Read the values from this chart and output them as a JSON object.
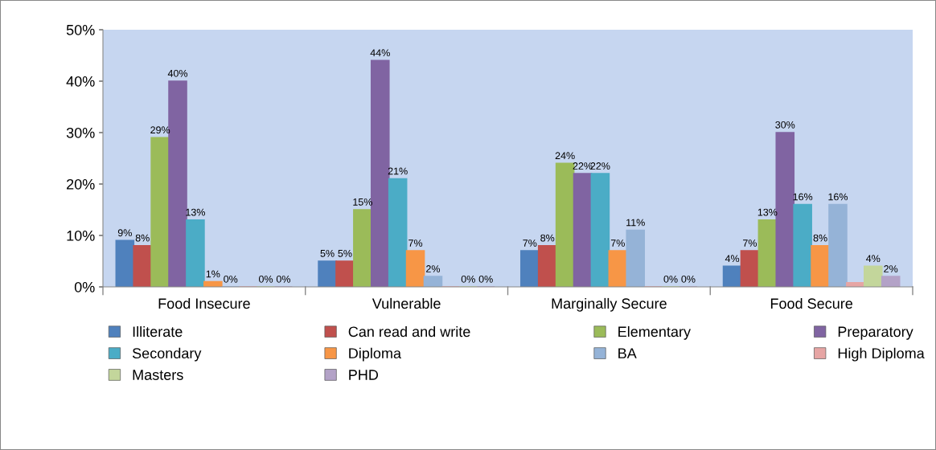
{
  "chart_data": {
    "type": "bar",
    "categories": [
      "Food Insecure",
      "Vulnerable",
      "Marginally Secure",
      "Food Secure"
    ],
    "ylim": [
      0,
      50
    ],
    "yticks": [
      {
        "value": 0,
        "label": "0%"
      },
      {
        "value": 10,
        "label": "10%"
      },
      {
        "value": 20,
        "label": "20%"
      },
      {
        "value": 30,
        "label": "30%"
      },
      {
        "value": 40,
        "label": "40%"
      },
      {
        "value": 50,
        "label": "50%"
      }
    ],
    "grid": false,
    "legend": "bottom",
    "series": [
      {
        "name": "Illiterate",
        "color": "#4f81bd",
        "values": [
          9,
          5,
          7,
          4
        ],
        "value_labels": [
          "9%",
          "5%",
          "7%",
          "4%"
        ]
      },
      {
        "name": "Can read and write",
        "color": "#c0504d",
        "values": [
          8,
          5,
          8,
          7
        ],
        "value_labels": [
          "8%",
          "5%",
          "8%",
          "7%"
        ]
      },
      {
        "name": "Elementary",
        "color": "#9bbb59",
        "values": [
          29,
          15,
          24,
          13
        ],
        "value_labels": [
          "29%",
          "15%",
          "24%",
          "13%"
        ]
      },
      {
        "name": "Preparatory",
        "color": "#8064a2",
        "values": [
          40,
          44,
          22,
          30
        ],
        "value_labels": [
          "40%",
          "44%",
          "22%",
          "30%"
        ]
      },
      {
        "name": "Secondary",
        "color": "#4bacc6",
        "values": [
          13,
          21,
          22,
          16
        ],
        "value_labels": [
          "13%",
          "21%",
          "22%",
          "16%"
        ]
      },
      {
        "name": "Diploma",
        "color": "#f79646",
        "values": [
          1,
          7,
          7,
          8
        ],
        "value_labels": [
          "1%",
          "7%",
          "7%",
          "8%"
        ]
      },
      {
        "name": "BA",
        "color": "#95b3d7",
        "values": [
          0,
          2,
          11,
          16
        ],
        "value_labels": [
          "0%",
          "2%",
          "11%",
          "16%"
        ]
      },
      {
        "name": "High Diploma",
        "color": "#e6a5a4",
        "values": [
          0,
          0,
          0,
          0.8
        ],
        "value_labels": [
          null,
          null,
          null,
          null
        ]
      },
      {
        "name": "Masters",
        "color": "#c3d69b",
        "values": [
          0,
          0,
          0,
          4
        ],
        "value_labels": [
          "0%",
          "0%",
          "0%",
          "4%"
        ]
      },
      {
        "name": "PHD",
        "color": "#b3a2c7",
        "values": [
          0,
          0,
          0,
          2
        ],
        "value_labels": [
          "0%",
          "0%",
          "0%",
          "2%"
        ]
      }
    ]
  }
}
